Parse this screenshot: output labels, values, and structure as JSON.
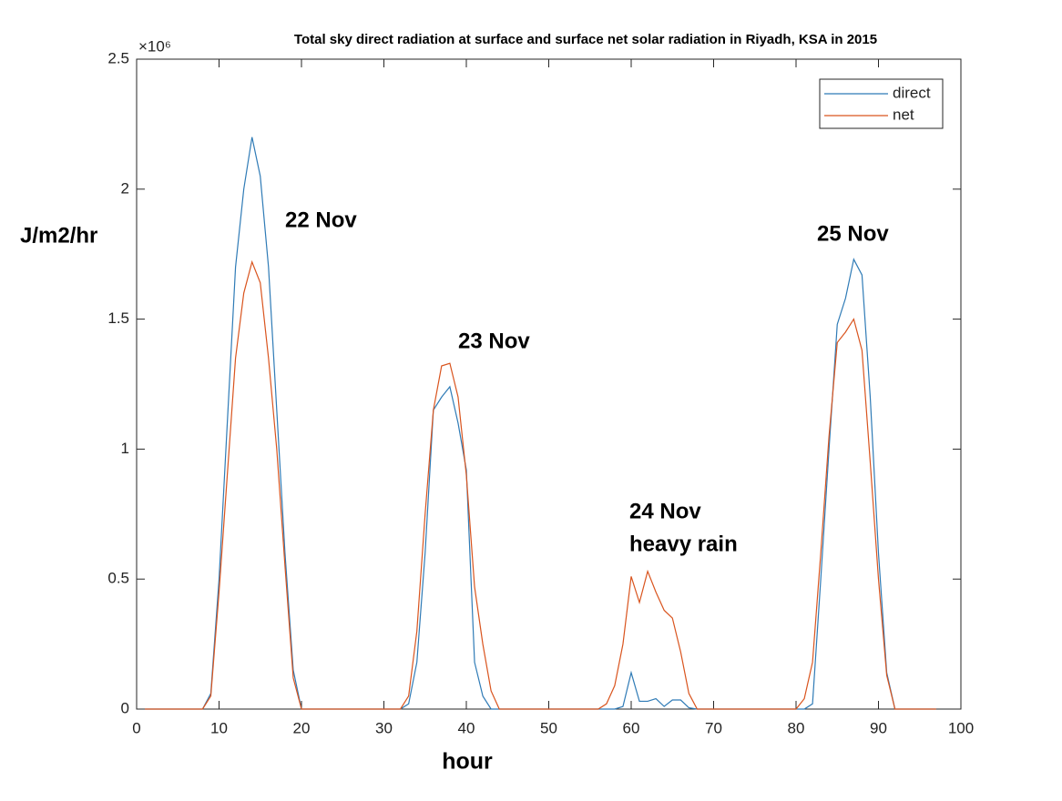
{
  "chart_data": {
    "type": "line",
    "title": "Total sky direct radiation at surface and surface net solar radiation in Riyadh, KSA in 2015",
    "x_label": "hour",
    "y_label": "J/m2/hr",
    "y_multiplier": "×10⁶",
    "x": [
      1,
      2,
      3,
      4,
      5,
      6,
      7,
      8,
      9,
      10,
      11,
      12,
      13,
      14,
      15,
      16,
      17,
      18,
      19,
      20,
      21,
      22,
      23,
      24,
      25,
      26,
      27,
      28,
      29,
      30,
      31,
      32,
      33,
      34,
      35,
      36,
      37,
      38,
      39,
      40,
      41,
      42,
      43,
      44,
      45,
      46,
      47,
      48,
      49,
      50,
      51,
      52,
      53,
      54,
      55,
      56,
      57,
      58,
      59,
      60,
      61,
      62,
      63,
      64,
      65,
      66,
      67,
      68,
      69,
      70,
      71,
      72,
      73,
      74,
      75,
      76,
      77,
      78,
      79,
      80,
      81,
      82,
      83,
      84,
      85,
      86,
      87,
      88,
      89,
      90,
      91,
      92,
      93,
      94,
      95,
      96,
      97
    ],
    "series": [
      {
        "name": "direct",
        "color": "#2f7bb6",
        "values": [
          0,
          0,
          0,
          0,
          0,
          0,
          0,
          0,
          0.06,
          0.5,
          1.1,
          1.7,
          2.0,
          2.2,
          2.05,
          1.7,
          1.15,
          0.6,
          0.15,
          0,
          0,
          0,
          0,
          0,
          0,
          0,
          0,
          0,
          0,
          0,
          0,
          0,
          0.02,
          0.18,
          0.6,
          1.15,
          1.2,
          1.24,
          1.1,
          0.92,
          0.18,
          0.05,
          0,
          0,
          0,
          0,
          0,
          0,
          0,
          0,
          0,
          0,
          0,
          0,
          0,
          0,
          0,
          0,
          0.01,
          0.14,
          0.03,
          0.03,
          0.04,
          0.01,
          0.035,
          0.035,
          0.005,
          0,
          0,
          0,
          0,
          0,
          0,
          0,
          0,
          0,
          0,
          0,
          0,
          0,
          0,
          0.02,
          0.5,
          1.0,
          1.48,
          1.58,
          1.73,
          1.67,
          1.2,
          0.6,
          0.14,
          0,
          0,
          0,
          0,
          0,
          0
        ]
      },
      {
        "name": "net",
        "color": "#d9541e",
        "values": [
          0,
          0,
          0,
          0,
          0,
          0,
          0,
          0,
          0.05,
          0.45,
          0.9,
          1.35,
          1.6,
          1.72,
          1.64,
          1.35,
          1.0,
          0.55,
          0.12,
          0,
          0,
          0,
          0,
          0,
          0,
          0,
          0,
          0,
          0,
          0,
          0,
          0,
          0.05,
          0.3,
          0.75,
          1.15,
          1.32,
          1.33,
          1.2,
          0.9,
          0.47,
          0.25,
          0.07,
          0,
          0,
          0,
          0,
          0,
          0,
          0,
          0,
          0,
          0,
          0,
          0,
          0,
          0.02,
          0.09,
          0.25,
          0.51,
          0.41,
          0.53,
          0.45,
          0.38,
          0.35,
          0.22,
          0.06,
          0,
          0,
          0,
          0,
          0,
          0,
          0,
          0,
          0,
          0,
          0,
          0,
          0,
          0.04,
          0.18,
          0.6,
          1.05,
          1.41,
          1.45,
          1.5,
          1.38,
          0.95,
          0.5,
          0.13,
          0,
          0,
          0,
          0,
          0,
          0
        ]
      }
    ],
    "xlim": [
      0,
      100
    ],
    "xticks": [
      0,
      10,
      20,
      30,
      40,
      50,
      60,
      70,
      80,
      90,
      100
    ],
    "ylim": [
      0,
      2.5
    ],
    "yticks": [
      0,
      0.5,
      1,
      1.5,
      2,
      2.5
    ],
    "legend": "top-right",
    "annotations": [
      "22 Nov",
      "23 Nov",
      "24 Nov",
      "heavy rain",
      "25 Nov"
    ]
  }
}
